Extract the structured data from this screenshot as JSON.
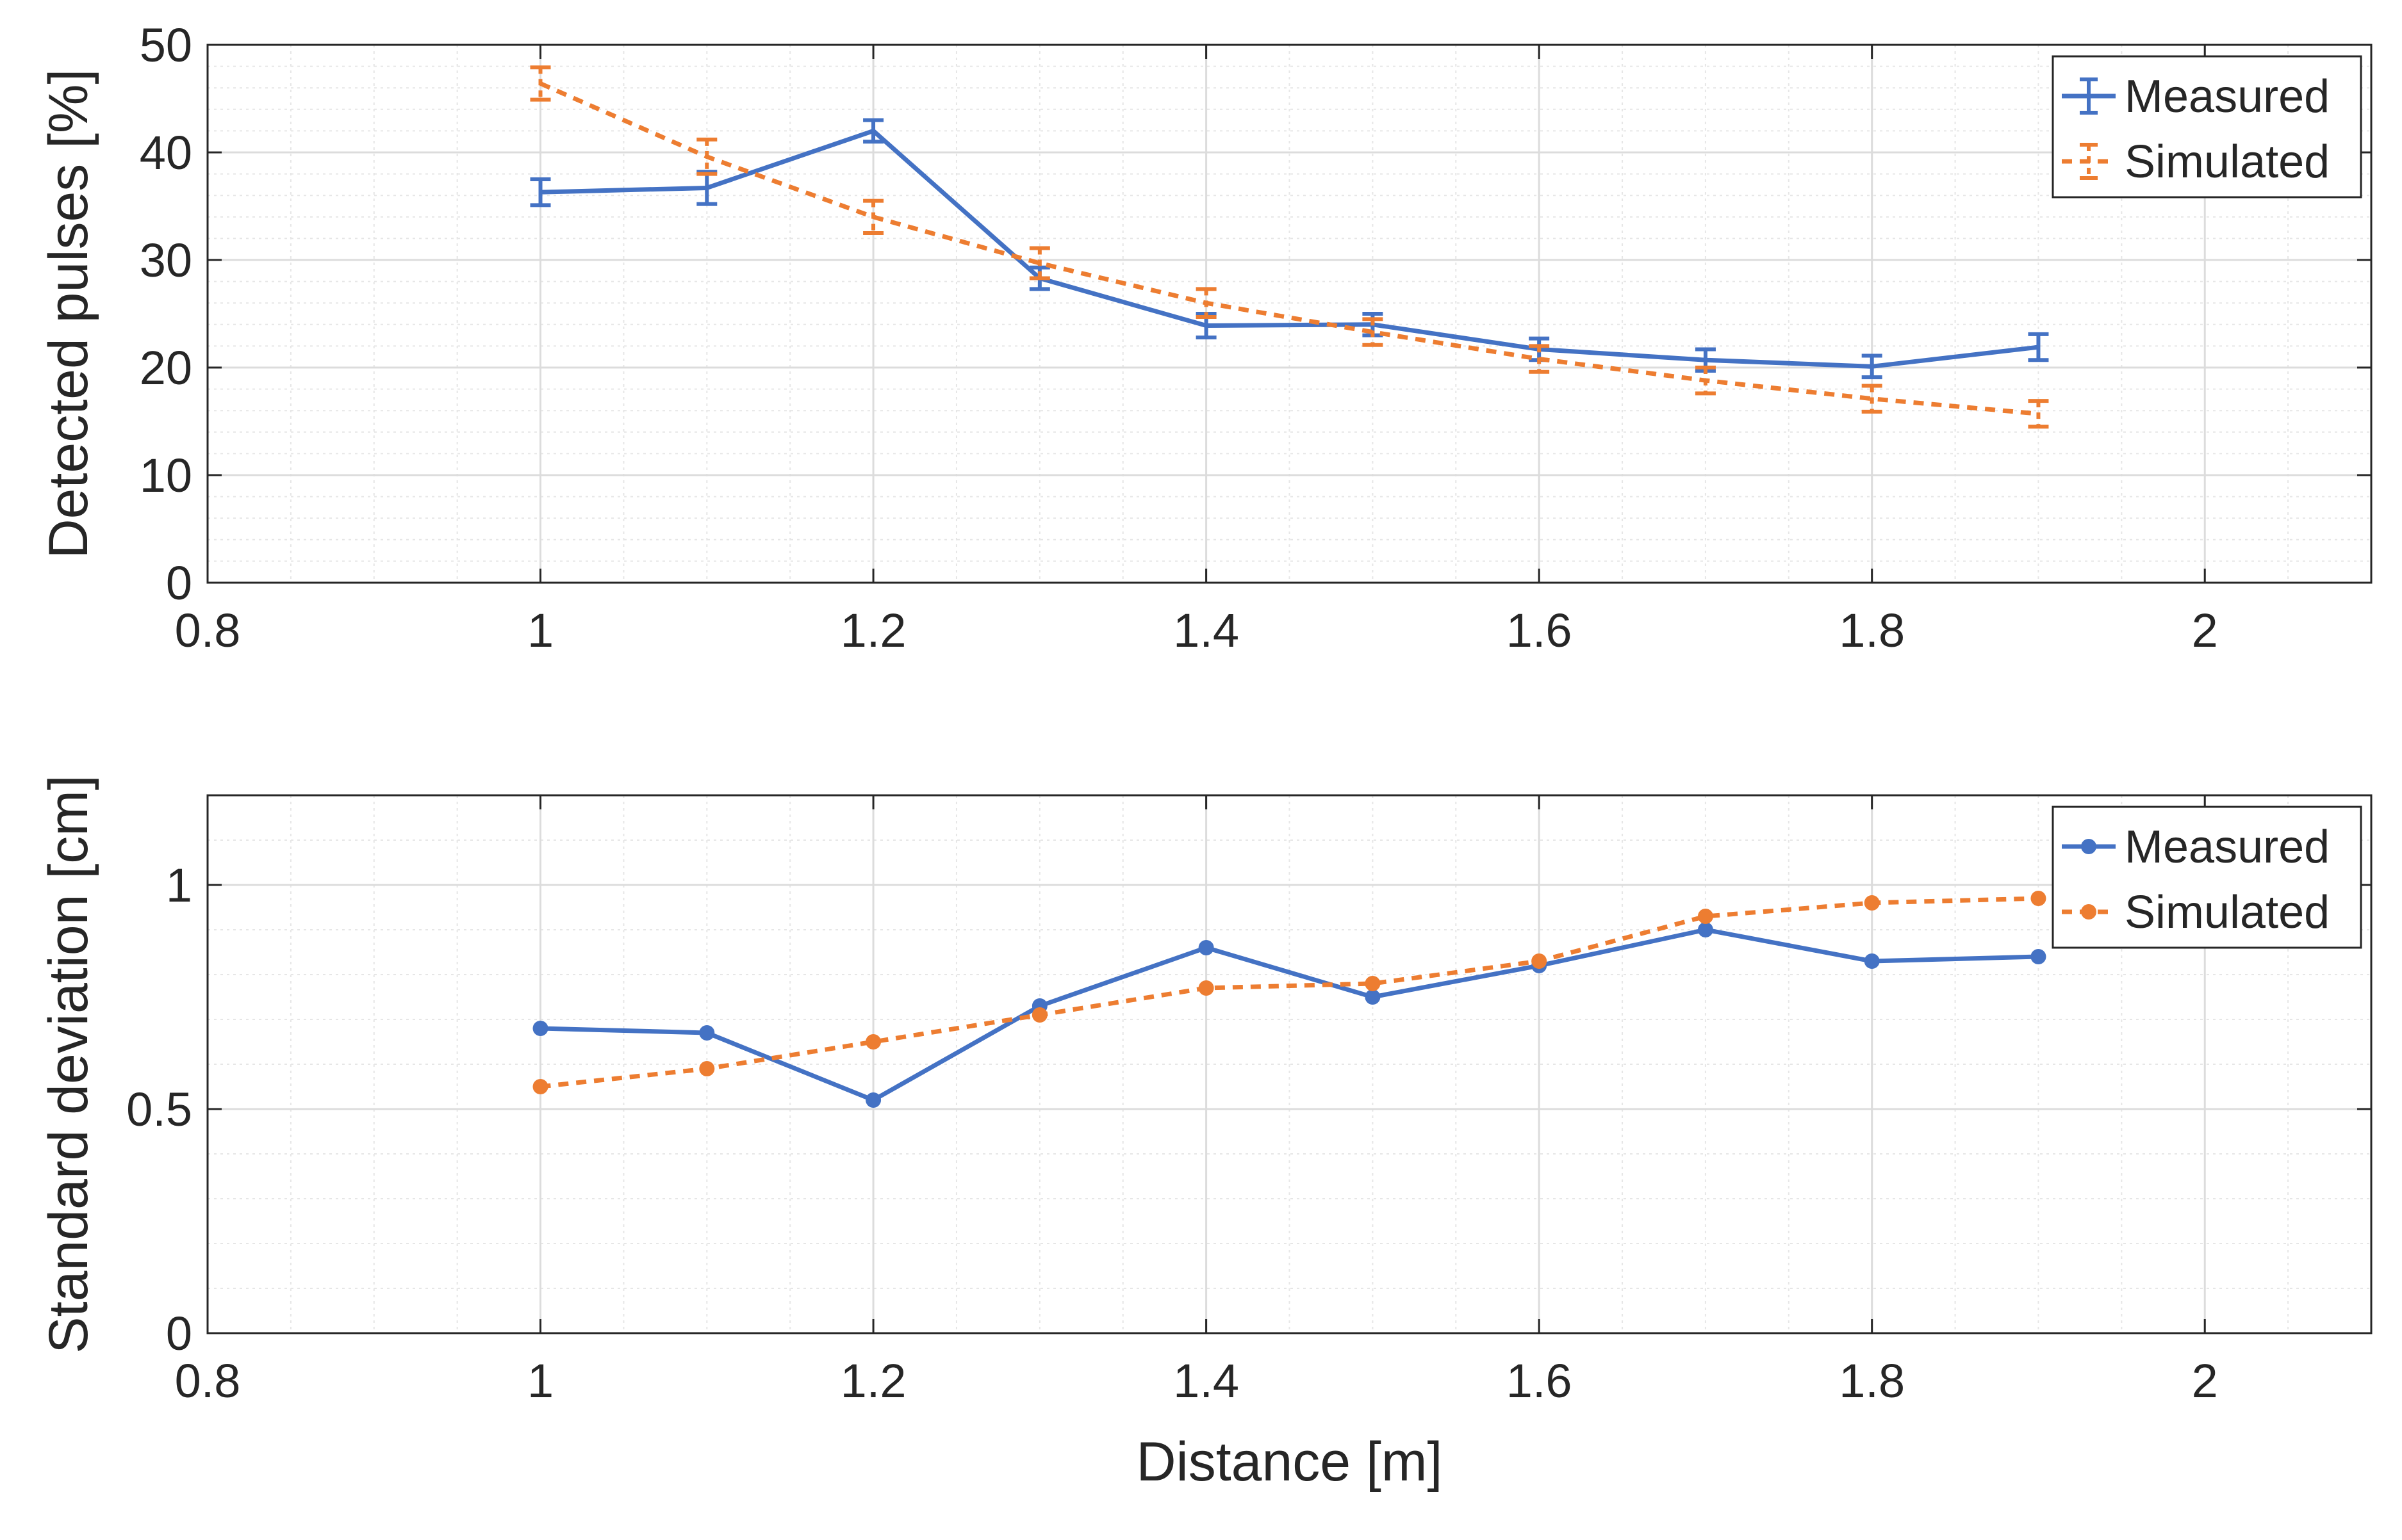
{
  "colors": {
    "measured": "#4472C4",
    "simulated": "#ED7D31",
    "major_grid": "#DCDCDC",
    "minor_grid": "#E6E6E6",
    "axes": "#262626",
    "background": "#FFFFFF"
  },
  "chart_data": [
    {
      "type": "line",
      "title": "",
      "xlabel": "",
      "ylabel": "Detected pulses [%]",
      "xlim": [
        0.8,
        2.1
      ],
      "ylim": [
        0,
        50
      ],
      "xticks": [
        0.8,
        1,
        1.2,
        1.4,
        1.6,
        1.8,
        2
      ],
      "xtick_labels": [
        "0.8",
        "1",
        "1.2",
        "1.4",
        "1.6",
        "1.8",
        "2"
      ],
      "yticks": [
        0,
        10,
        20,
        30,
        40,
        50
      ],
      "ytick_labels": [
        "0",
        "10",
        "20",
        "30",
        "40",
        "50"
      ],
      "grid": true,
      "minor_grid": true,
      "legend": "top-right",
      "x": [
        1.0,
        1.1,
        1.2,
        1.3,
        1.4,
        1.5,
        1.6,
        1.7,
        1.8,
        1.9
      ],
      "series": [
        {
          "name": "Measured",
          "style": "solid",
          "marker": "errorbar",
          "values": [
            36.3,
            36.7,
            42.0,
            28.3,
            23.9,
            24.0,
            21.7,
            20.7,
            20.1,
            21.9
          ],
          "errors": [
            1.2,
            1.5,
            1.0,
            1.0,
            1.1,
            1.0,
            1.0,
            1.0,
            1.0,
            1.2
          ]
        },
        {
          "name": "Simulated",
          "style": "dashed",
          "marker": "errorbar",
          "values": [
            46.4,
            39.6,
            34.0,
            29.7,
            26.0,
            23.3,
            20.8,
            18.8,
            17.1,
            15.7
          ],
          "errors": [
            1.5,
            1.6,
            1.5,
            1.4,
            1.3,
            1.2,
            1.2,
            1.2,
            1.2,
            1.2
          ]
        }
      ]
    },
    {
      "type": "line",
      "title": "",
      "xlabel": "Distance [m]",
      "ylabel": "Standard deviation [cm]",
      "xlim": [
        0.8,
        2.1
      ],
      "ylim": [
        0,
        1.2
      ],
      "xticks": [
        0.8,
        1,
        1.2,
        1.4,
        1.6,
        1.8,
        2
      ],
      "xtick_labels": [
        "0.8",
        "1",
        "1.2",
        "1.4",
        "1.6",
        "1.8",
        "2"
      ],
      "yticks": [
        0,
        0.5,
        1
      ],
      "ytick_labels": [
        "0",
        "0.5",
        "1"
      ],
      "grid": true,
      "minor_grid": true,
      "legend": "top-right",
      "x": [
        1.0,
        1.1,
        1.2,
        1.3,
        1.4,
        1.5,
        1.6,
        1.7,
        1.8,
        1.9
      ],
      "series": [
        {
          "name": "Measured",
          "style": "solid",
          "marker": "dot",
          "values": [
            0.68,
            0.67,
            0.52,
            0.73,
            0.86,
            0.75,
            0.82,
            0.9,
            0.83,
            0.84
          ]
        },
        {
          "name": "Simulated",
          "style": "dashed",
          "marker": "dot",
          "values": [
            0.55,
            0.59,
            0.65,
            0.71,
            0.77,
            0.78,
            0.83,
            0.93,
            0.96,
            0.97
          ]
        }
      ]
    }
  ]
}
